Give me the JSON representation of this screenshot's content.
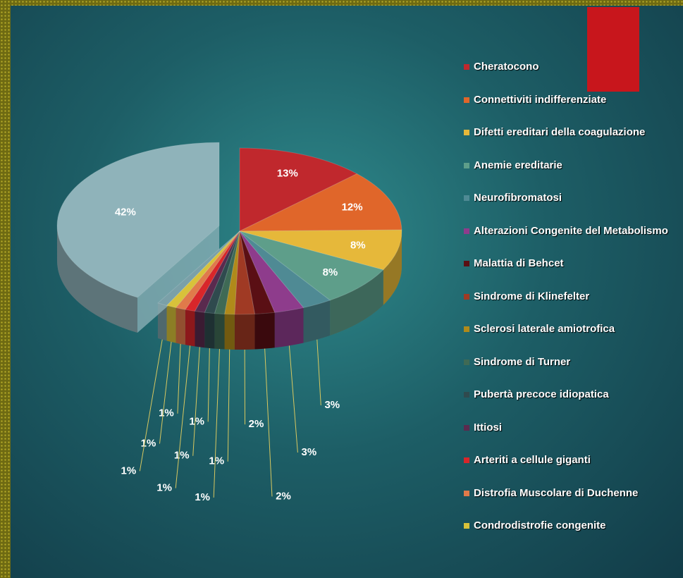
{
  "chart_data": {
    "type": "pie",
    "categories": [
      "Cheratocono",
      "Connettiviti indifferenziate",
      "Difetti ereditari della coagulazione",
      "Anemie ereditarie",
      "Neurofibromatosi",
      "Alterazioni Congenite del Metabolismo",
      "Malattia di Behcet",
      "Sindrome di Klinefelter",
      "Sclerosi laterale amiotrofica",
      "Sindrome di Turner",
      "Pubertà precoce idiopatica",
      "Ittiosi",
      "Arteriti a cellule giganti",
      "Distrofia Muscolare di Duchenne",
      "Condrodistrofie congenite",
      null,
      null
    ],
    "values": [
      13,
      12,
      8,
      8,
      3,
      3,
      2,
      2,
      1,
      1,
      1,
      1,
      1,
      1,
      1,
      1,
      42
    ],
    "value_labels": [
      "13%",
      "12%",
      "8%",
      "8%",
      "3%",
      "3%",
      "2%",
      "2%",
      "1%",
      "1%",
      "1%",
      "1%",
      "1%",
      "1%",
      "1%",
      "1%",
      "42%"
    ],
    "colors": [
      "#c0282d",
      "#e0662a",
      "#e6b83a",
      "#5e9e8a",
      "#4f8a94",
      "#8e3c8c",
      "#5a0f14",
      "#a03a24",
      "#b08a1a",
      "#3f6a55",
      "#2f4a4e",
      "#5a2a4e",
      "#d8262a",
      "#e07a4a",
      "#d8c23a",
      "#7aa0a8",
      "#8fb3ba"
    ]
  }
}
